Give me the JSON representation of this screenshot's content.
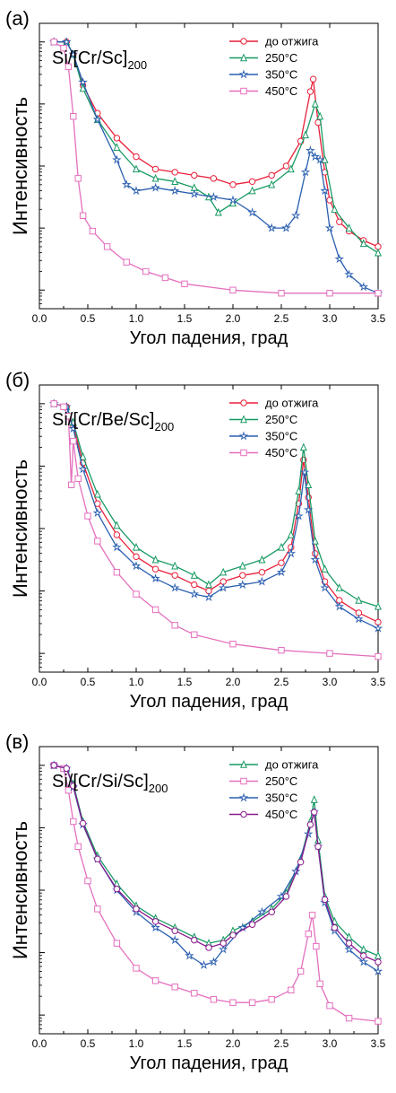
{
  "figure": {
    "xlabel": "Угол падения, град",
    "ylabel": "Интенсивность",
    "colors": {
      "red": "#e8203a",
      "green": "#179a63",
      "blue": "#2a5fb0",
      "pink": "#e46fbd",
      "purple": "#8a1a8c"
    }
  },
  "chart_data": [
    {
      "type": "line",
      "panel_label": "(а)",
      "title": "Si/[Cr/Sc]",
      "title_sub": "200",
      "xlabel": "Угол падения, град",
      "ylabel": "Интенсивность",
      "xlim": [
        0,
        3.5
      ],
      "xticks": [
        "0.0",
        "0.5",
        "1.0",
        "1.5",
        "2.0",
        "2.5",
        "3.0",
        "3.5"
      ],
      "ylim": [
        -4.3,
        0.3
      ],
      "y_scale": "log",
      "legend_position": "top-right",
      "series": [
        {
          "name": "до отжига",
          "color": "red",
          "marker": "circle",
          "x": [
            0.15,
            0.28,
            0.35,
            0.45,
            0.6,
            0.8,
            1.0,
            1.2,
            1.4,
            1.6,
            1.8,
            2.0,
            2.2,
            2.4,
            2.55,
            2.7,
            2.8,
            2.83,
            2.88,
            2.95,
            3.0,
            3.1,
            3.2,
            3.35,
            3.5
          ],
          "y": [
            0,
            0,
            -0.2,
            -0.7,
            -1.15,
            -1.55,
            -1.85,
            -2.05,
            -2.1,
            -2.15,
            -2.2,
            -2.3,
            -2.25,
            -2.15,
            -2.0,
            -1.6,
            -0.8,
            -0.6,
            -1.3,
            -2.1,
            -2.55,
            -2.9,
            -3.05,
            -3.2,
            -3.3
          ]
        },
        {
          "name": "250°C",
          "color": "green",
          "marker": "triangle",
          "x": [
            0.15,
            0.28,
            0.35,
            0.45,
            0.6,
            0.8,
            1.0,
            1.2,
            1.4,
            1.6,
            1.75,
            1.85,
            2.0,
            2.2,
            2.4,
            2.6,
            2.75,
            2.85,
            2.9,
            2.95,
            3.05,
            3.2,
            3.35,
            3.5
          ],
          "y": [
            0,
            0,
            -0.2,
            -0.75,
            -1.25,
            -1.7,
            -2.05,
            -2.2,
            -2.25,
            -2.35,
            -2.5,
            -2.75,
            -2.6,
            -2.4,
            -2.3,
            -2.05,
            -1.5,
            -1.0,
            -1.2,
            -1.9,
            -2.7,
            -3.0,
            -3.25,
            -3.4
          ]
        },
        {
          "name": "350°C",
          "color": "blue",
          "marker": "star",
          "x": [
            0.15,
            0.28,
            0.35,
            0.45,
            0.6,
            0.8,
            0.9,
            1.0,
            1.2,
            1.4,
            1.6,
            1.8,
            2.0,
            2.2,
            2.4,
            2.55,
            2.65,
            2.75,
            2.8,
            2.85,
            2.9,
            2.95,
            3.0,
            3.1,
            3.2,
            3.35,
            3.5
          ],
          "y": [
            0,
            0,
            -0.2,
            -0.65,
            -1.25,
            -1.9,
            -2.3,
            -2.4,
            -2.35,
            -2.4,
            -2.45,
            -2.5,
            -2.55,
            -2.75,
            -3.0,
            -3.0,
            -2.8,
            -2.1,
            -1.75,
            -1.85,
            -1.9,
            -2.4,
            -3.0,
            -3.5,
            -3.75,
            -3.95,
            -4.05
          ]
        },
        {
          "name": "450°C",
          "color": "pink",
          "marker": "square",
          "x": [
            0.15,
            0.25,
            0.3,
            0.35,
            0.4,
            0.45,
            0.55,
            0.7,
            0.9,
            1.1,
            1.3,
            1.5,
            2.0,
            2.5,
            3.0,
            3.5
          ],
          "y": [
            0,
            -0.1,
            -0.4,
            -1.2,
            -2.2,
            -2.8,
            -3.05,
            -3.3,
            -3.55,
            -3.7,
            -3.8,
            -3.9,
            -4.0,
            -4.05,
            -4.05,
            -4.05
          ]
        }
      ]
    },
    {
      "type": "line",
      "panel_label": "(б)",
      "title": "Si/[Cr/Be/Sc]",
      "title_sub": "200",
      "xlabel": "Угол падения, град",
      "ylabel": "Интенсивность",
      "xlim": [
        0,
        3.5
      ],
      "xticks": [
        "0.0",
        "0.5",
        "1.0",
        "1.5",
        "2.0",
        "2.5",
        "3.0",
        "3.5"
      ],
      "ylim": [
        -4.3,
        0.3
      ],
      "y_scale": "log",
      "legend_position": "top-right",
      "series": [
        {
          "name": "до отжига",
          "color": "red",
          "marker": "circle",
          "x": [
            0.15,
            0.28,
            0.35,
            0.45,
            0.6,
            0.8,
            1.0,
            1.2,
            1.4,
            1.6,
            1.75,
            1.9,
            2.1,
            2.3,
            2.5,
            2.6,
            2.68,
            2.73,
            2.78,
            2.85,
            2.95,
            3.1,
            3.3,
            3.5
          ],
          "y": [
            0,
            -0.05,
            -0.35,
            -0.95,
            -1.6,
            -2.1,
            -2.45,
            -2.65,
            -2.75,
            -2.9,
            -3.0,
            -2.85,
            -2.75,
            -2.7,
            -2.55,
            -2.3,
            -1.6,
            -0.9,
            -1.5,
            -2.4,
            -2.85,
            -3.15,
            -3.35,
            -3.5
          ]
        },
        {
          "name": "250°C",
          "color": "green",
          "marker": "triangle",
          "x": [
            0.15,
            0.28,
            0.35,
            0.45,
            0.6,
            0.8,
            1.0,
            1.2,
            1.4,
            1.6,
            1.75,
            1.9,
            2.1,
            2.3,
            2.5,
            2.6,
            2.68,
            2.73,
            2.78,
            2.85,
            2.95,
            3.1,
            3.3,
            3.5
          ],
          "y": [
            0,
            -0.05,
            -0.3,
            -0.85,
            -1.45,
            -1.95,
            -2.3,
            -2.5,
            -2.6,
            -2.75,
            -2.9,
            -2.7,
            -2.6,
            -2.5,
            -2.3,
            -2.1,
            -1.4,
            -0.7,
            -1.3,
            -2.2,
            -2.65,
            -2.95,
            -3.15,
            -3.25
          ]
        },
        {
          "name": "350°C",
          "color": "blue",
          "marker": "star",
          "x": [
            0.15,
            0.28,
            0.35,
            0.45,
            0.6,
            0.8,
            1.0,
            1.2,
            1.4,
            1.6,
            1.75,
            1.9,
            2.1,
            2.3,
            2.5,
            2.6,
            2.68,
            2.74,
            2.78,
            2.85,
            2.95,
            3.1,
            3.3,
            3.5
          ],
          "y": [
            0,
            -0.05,
            -0.4,
            -1.05,
            -1.75,
            -2.3,
            -2.6,
            -2.8,
            -2.95,
            -3.05,
            -3.1,
            -2.95,
            -2.9,
            -2.85,
            -2.7,
            -2.4,
            -1.8,
            -1.1,
            -1.7,
            -2.5,
            -2.95,
            -3.25,
            -3.45,
            -3.6
          ]
        },
        {
          "name": "450°C",
          "color": "pink",
          "marker": "square",
          "x": [
            0.15,
            0.25,
            0.3,
            0.33,
            0.35,
            0.4,
            0.5,
            0.6,
            0.8,
            1.0,
            1.2,
            1.4,
            1.6,
            2.0,
            2.5,
            3.0,
            3.5
          ],
          "y": [
            0,
            -0.05,
            -0.2,
            -1.3,
            -0.6,
            -1.2,
            -1.8,
            -2.2,
            -2.7,
            -3.05,
            -3.3,
            -3.55,
            -3.7,
            -3.85,
            -3.95,
            -4.0,
            -4.05
          ]
        }
      ]
    },
    {
      "type": "line",
      "panel_label": "(в)",
      "title": "Si/[Cr/Si/Sc]",
      "title_sub": "200",
      "xlabel": "Угол падения, град",
      "ylabel": "Интенсивность",
      "xlim": [
        0,
        3.5
      ],
      "xticks": [
        "0.0",
        "0.5",
        "1.0",
        "1.5",
        "2.0",
        "2.5",
        "3.0",
        "3.5"
      ],
      "ylim": [
        -4.3,
        0.3
      ],
      "y_scale": "log",
      "legend_position": "top-right",
      "series": [
        {
          "name": "до отжига",
          "color": "green",
          "marker": "triangle",
          "x": [
            0.15,
            0.28,
            0.35,
            0.45,
            0.6,
            0.8,
            1.0,
            1.2,
            1.4,
            1.6,
            1.75,
            1.9,
            2.0,
            2.2,
            2.4,
            2.55,
            2.7,
            2.8,
            2.84,
            2.88,
            2.95,
            3.05,
            3.2,
            3.35,
            3.5
          ],
          "y": [
            0,
            -0.05,
            -0.3,
            -0.9,
            -1.45,
            -1.9,
            -2.25,
            -2.45,
            -2.6,
            -2.75,
            -2.85,
            -2.8,
            -2.65,
            -2.5,
            -2.3,
            -2.05,
            -1.5,
            -0.9,
            -0.55,
            -1.2,
            -2.1,
            -2.5,
            -2.75,
            -2.95,
            -3.05
          ]
        },
        {
          "name": "250°C",
          "color": "pink",
          "marker": "square",
          "x": [
            0.15,
            0.25,
            0.3,
            0.35,
            0.4,
            0.5,
            0.6,
            0.8,
            1.0,
            1.2,
            1.4,
            1.6,
            1.8,
            2.0,
            2.2,
            2.4,
            2.6,
            2.7,
            2.78,
            2.82,
            2.86,
            2.9,
            3.0,
            3.2,
            3.5
          ],
          "y": [
            0,
            -0.05,
            -0.4,
            -0.9,
            -1.3,
            -1.85,
            -2.3,
            -2.85,
            -3.25,
            -3.45,
            -3.55,
            -3.65,
            -3.75,
            -3.8,
            -3.8,
            -3.75,
            -3.6,
            -3.3,
            -2.7,
            -2.4,
            -2.9,
            -3.5,
            -3.85,
            -4.05,
            -4.1
          ]
        },
        {
          "name": "350°C",
          "color": "blue",
          "marker": "star",
          "x": [
            0.15,
            0.28,
            0.35,
            0.45,
            0.6,
            0.8,
            1.0,
            1.2,
            1.4,
            1.55,
            1.7,
            1.8,
            1.9,
            2.1,
            2.3,
            2.5,
            2.65,
            2.78,
            2.84,
            2.88,
            2.95,
            3.05,
            3.2,
            3.35,
            3.5
          ],
          "y": [
            0,
            -0.05,
            -0.35,
            -0.95,
            -1.5,
            -2.0,
            -2.35,
            -2.6,
            -2.8,
            -3.05,
            -3.2,
            -3.15,
            -2.95,
            -2.6,
            -2.35,
            -2.1,
            -1.7,
            -1.1,
            -0.75,
            -1.3,
            -2.2,
            -2.65,
            -2.95,
            -3.15,
            -3.3
          ]
        },
        {
          "name": "450°C",
          "color": "purple",
          "marker": "circle",
          "x": [
            0.15,
            0.28,
            0.35,
            0.45,
            0.6,
            0.8,
            1.0,
            1.2,
            1.4,
            1.6,
            1.75,
            1.9,
            2.0,
            2.2,
            2.4,
            2.55,
            2.7,
            2.8,
            2.84,
            2.88,
            2.95,
            3.05,
            3.2,
            3.35,
            3.5
          ],
          "y": [
            0,
            -0.05,
            -0.33,
            -0.93,
            -1.5,
            -1.98,
            -2.3,
            -2.5,
            -2.65,
            -2.8,
            -2.92,
            -2.85,
            -2.72,
            -2.55,
            -2.35,
            -2.1,
            -1.55,
            -0.95,
            -0.75,
            -1.3,
            -2.15,
            -2.6,
            -2.85,
            -3.05,
            -3.15
          ]
        }
      ]
    }
  ]
}
